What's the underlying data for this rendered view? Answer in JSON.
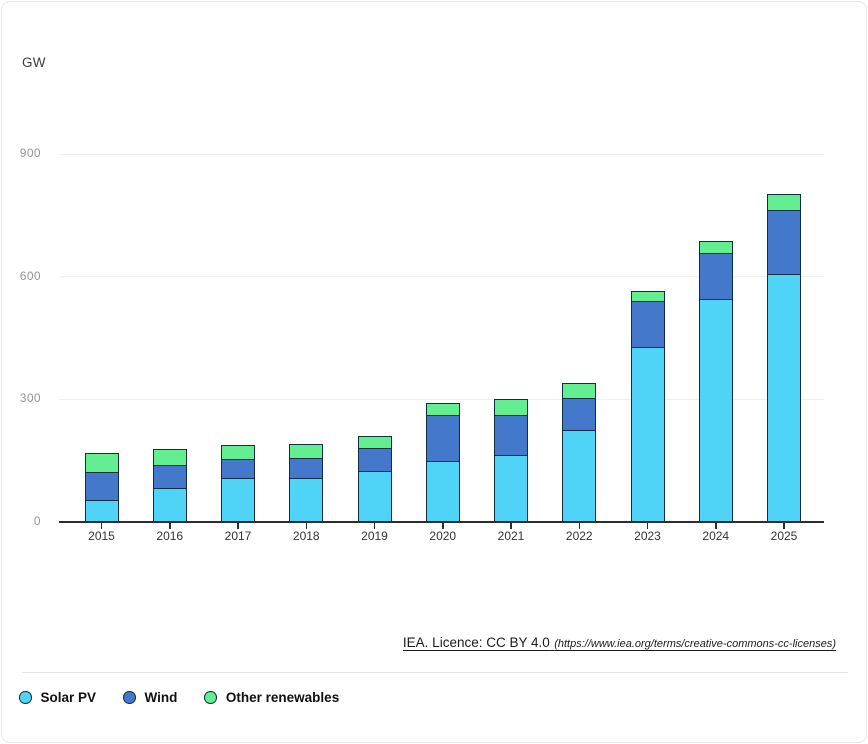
{
  "attribution": {
    "text": "IEA. Licence: CC BY 4.0",
    "url_text": "(https://www.iea.org/terms/creative-commons-cc-licenses)"
  },
  "legend": {
    "items": [
      {
        "label": "Solar PV",
        "color": "#4FD4F7"
      },
      {
        "label": "Wind",
        "color": "#4478CB"
      },
      {
        "label": "Other renewables",
        "color": "#63EE92"
      }
    ]
  },
  "chart_data": {
    "type": "bar",
    "stacked": true,
    "title": "",
    "unit_label": "GW",
    "ylabel": "GW",
    "categories": [
      "2015",
      "2016",
      "2017",
      "2018",
      "2019",
      "2020",
      "2021",
      "2022",
      "2023",
      "2024",
      "2025"
    ],
    "series": [
      {
        "name": "Solar PV",
        "color": "#4FD4F7",
        "values": [
          53,
          83,
          107,
          107,
          123,
          148,
          164,
          223,
          427,
          544,
          605
        ]
      },
      {
        "name": "Wind",
        "color": "#4478CB",
        "values": [
          69,
          56,
          45,
          49,
          57,
          112,
          98,
          79,
          114,
          114,
          158
        ]
      },
      {
        "name": "Other renewables",
        "color": "#63EE92",
        "values": [
          45,
          39,
          35,
          33,
          29,
          31,
          38,
          38,
          23,
          29,
          38
        ]
      }
    ],
    "totals": [
      167,
      178,
      187,
      189,
      209,
      291,
      300,
      340,
      564,
      687,
      801
    ],
    "yticks": [
      0,
      300,
      600,
      900
    ],
    "ylim": [
      0,
      900
    ],
    "grid": true,
    "legend_position": "bottom-left"
  },
  "colors": {
    "segment_border": "#10303f",
    "axis": "#2d2d2d",
    "gridline": "#efefef",
    "y_tick_label": "#939699",
    "x_tick_label": "#333333",
    "card_border": "#e8e8e8"
  }
}
